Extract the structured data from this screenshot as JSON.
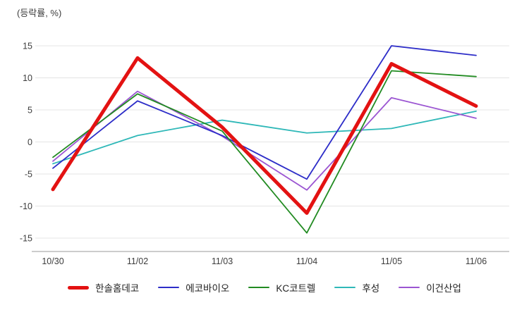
{
  "chart_data": {
    "type": "line",
    "title": "(등락률, %)",
    "x_categories": [
      "10/30",
      "11/02",
      "11/03",
      "11/04",
      "11/05",
      "11/06"
    ],
    "y_ticks": [
      15,
      10,
      5,
      0,
      -5,
      -10,
      -15
    ],
    "ylim": [
      -17,
      17
    ],
    "grid": "horizontal",
    "legend_position": "bottom",
    "series": [
      {
        "name": "한솔홈데코",
        "color": "#e31212",
        "line_width": 5,
        "values": [
          -7.4,
          13.1,
          2.3,
          -11.1,
          12.2,
          5.6
        ]
      },
      {
        "name": "에코바이오",
        "color": "#2d2dc8",
        "line_width": 1.8,
        "values": [
          -4.1,
          6.4,
          1.0,
          -5.8,
          15.0,
          13.5
        ]
      },
      {
        "name": "KC코트렐",
        "color": "#228b22",
        "line_width": 1.8,
        "values": [
          -2.4,
          7.5,
          1.7,
          -14.2,
          11.1,
          10.2
        ]
      },
      {
        "name": "후성",
        "color": "#2fb8b8",
        "line_width": 1.8,
        "values": [
          -3.4,
          1.0,
          3.4,
          1.4,
          2.1,
          4.8
        ]
      },
      {
        "name": "이건산업",
        "color": "#9b55d2",
        "line_width": 1.8,
        "values": [
          -3.0,
          7.9,
          0.9,
          -7.5,
          6.9,
          3.7
        ]
      }
    ],
    "colors": {
      "background": "#ffffff",
      "text": "#3d3d3d",
      "grid": "#e4e4e4",
      "axis": "#9a9a9a"
    }
  }
}
